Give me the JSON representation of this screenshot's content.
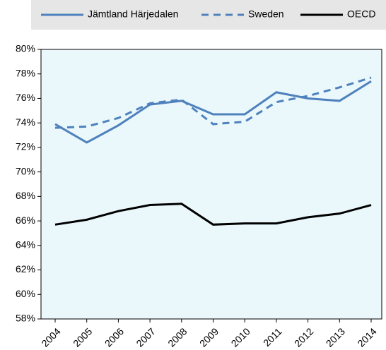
{
  "chart_data": {
    "type": "line",
    "categories": [
      "2004",
      "2005",
      "2006",
      "2007",
      "2008",
      "2009",
      "2010",
      "2011",
      "2012",
      "2013",
      "2014"
    ],
    "series": [
      {
        "name": "Jämtland Härjedalen",
        "color": "#4f81bd",
        "dash": false,
        "values": [
          73.9,
          72.4,
          73.8,
          75.5,
          75.8,
          74.7,
          74.7,
          76.5,
          76.0,
          75.8,
          77.4
        ]
      },
      {
        "name": "Sweden",
        "color": "#4f81bd",
        "dash": true,
        "values": [
          73.6,
          73.7,
          74.4,
          75.6,
          75.9,
          73.9,
          74.1,
          75.7,
          76.2,
          76.9,
          77.7
        ]
      },
      {
        "name": "OECD",
        "color": "#000000",
        "dash": false,
        "values": [
          65.7,
          66.1,
          66.8,
          67.3,
          67.4,
          65.7,
          65.8,
          65.8,
          66.3,
          66.6,
          67.3
        ]
      }
    ],
    "ylim": [
      58,
      80
    ],
    "yticks": [
      {
        "value": 58,
        "label": "58%"
      },
      {
        "value": 60,
        "label": "60%"
      },
      {
        "value": 62,
        "label": "62%"
      },
      {
        "value": 64,
        "label": "64%"
      },
      {
        "value": 66,
        "label": "66%"
      },
      {
        "value": 68,
        "label": "68%"
      },
      {
        "value": 70,
        "label": "70%"
      },
      {
        "value": 72,
        "label": "72%"
      },
      {
        "value": 74,
        "label": "74%"
      },
      {
        "value": 76,
        "label": "76%"
      },
      {
        "value": 78,
        "label": "78%"
      },
      {
        "value": 80,
        "label": "80%"
      }
    ]
  }
}
